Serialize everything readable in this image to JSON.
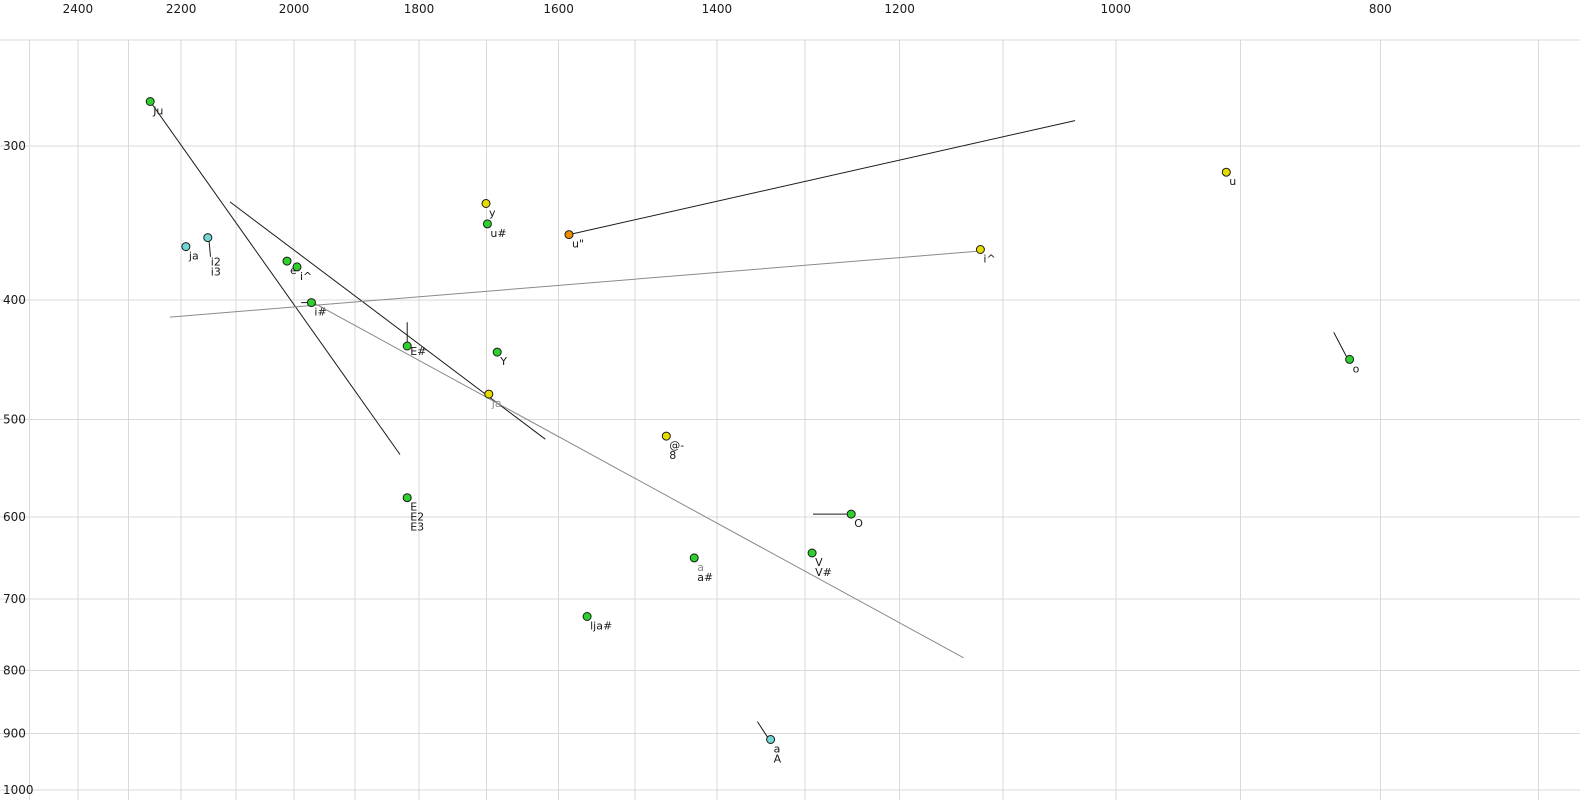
{
  "chart_data": {
    "type": "scatter",
    "title": "",
    "x_axis": {
      "side": "top",
      "scale": "log",
      "direction": "descending",
      "unit": "Hz",
      "tick_values": [
        2400,
        2200,
        2000,
        1800,
        1600,
        1400,
        1200,
        1000,
        800
      ],
      "tick_labels": [
        "2400",
        "2200",
        "2000",
        "1800",
        "1600",
        "1400",
        "1200",
        "1000",
        "800"
      ],
      "range": [
        2563,
        676
      ],
      "grid": {
        "min": 700,
        "max": 2500,
        "step": 100
      }
    },
    "y_axis": {
      "side": "left",
      "scale": "log",
      "direction": "descending-down",
      "unit": "Hz",
      "tick_values": [
        300,
        400,
        500,
        600,
        700,
        800,
        900,
        1000
      ],
      "tick_labels": [
        "300",
        "400",
        "500",
        "600",
        "700",
        "800",
        "900",
        "1000"
      ],
      "range": [
        246,
        1019
      ],
      "grid": {
        "min": 300,
        "max": 1000,
        "step": 100
      }
    },
    "points": [
      {
        "id": "Ju",
        "f2": 2258,
        "f1": 276,
        "color": "green",
        "labels": [
          {
            "text": "Ju",
            "color": "black"
          }
        ]
      },
      {
        "id": "u",
        "f2": 911,
        "f1": 315,
        "color": "yellow",
        "labels": [
          {
            "text": "u",
            "color": "black"
          }
        ]
      },
      {
        "id": "y",
        "f2": 1701,
        "f1": 334,
        "color": "yellow",
        "labels": [
          {
            "text": "y",
            "color": "black"
          }
        ]
      },
      {
        "id": "u#",
        "f2": 1699,
        "f1": 347,
        "color": "green",
        "labels": [
          {
            "text": "u#",
            "color": "black"
          }
        ]
      },
      {
        "id": "u-dq",
        "f2": 1586,
        "f1": 354,
        "color": "orange",
        "labels": [
          {
            "text": "u\"",
            "color": "black"
          }
        ]
      },
      {
        "id": "ja-front",
        "f2": 2191,
        "f1": 362,
        "color": "cyan",
        "labels": [
          {
            "text": "ja",
            "color": "black"
          }
        ]
      },
      {
        "id": "i2",
        "f2": 2151,
        "f1": 356,
        "color": "cyan",
        "label_dy": 28,
        "labels": [
          {
            "text": "i2",
            "color": "black"
          },
          {
            "text": "i3",
            "color": "black"
          }
        ]
      },
      {
        "id": "e",
        "f2": 2012,
        "f1": 372,
        "color": "green",
        "labels": [
          {
            "text": "e",
            "color": "black"
          }
        ]
      },
      {
        "id": "i^",
        "f2": 1995,
        "f1": 376,
        "color": "green",
        "labels": [
          {
            "text": "i^",
            "color": "black"
          }
        ]
      },
      {
        "id": "i#",
        "f2": 1971,
        "f1": 402,
        "color": "green",
        "labels": [
          {
            "text": "i#",
            "color": "black"
          }
        ]
      },
      {
        "id": "E#",
        "f2": 1818,
        "f1": 436,
        "color": "green",
        "label_dy": 9,
        "labels": [
          {
            "text": "E#",
            "color": "black"
          }
        ]
      },
      {
        "id": "Y",
        "f2": 1685,
        "f1": 441,
        "color": "green",
        "labels": [
          {
            "text": "Y",
            "color": "black"
          }
        ]
      },
      {
        "id": "ja-mid",
        "f2": 1697,
        "f1": 477,
        "color": "yellow",
        "labels": [
          {
            "text": "ja",
            "color": "gray"
          }
        ]
      },
      {
        "id": "@-",
        "f2": 1461,
        "f1": 516,
        "color": "yellow",
        "labels": [
          {
            "text": "@-",
            "color": "black"
          },
          {
            "text": "8",
            "color": "black"
          }
        ]
      },
      {
        "id": "E",
        "f2": 1818,
        "f1": 579,
        "color": "green",
        "labels": [
          {
            "text": "E",
            "color": "black"
          },
          {
            "text": "E2",
            "color": "black"
          },
          {
            "text": "E3",
            "color": "black"
          }
        ]
      },
      {
        "id": "O",
        "f2": 1250,
        "f1": 597,
        "color": "green",
        "labels": [
          {
            "text": "O",
            "color": "black"
          }
        ]
      },
      {
        "id": "a#",
        "f2": 1427,
        "f1": 648,
        "color": "green",
        "labels": [
          {
            "text": "a",
            "color": "gray"
          },
          {
            "text": "a#",
            "color": "black"
          }
        ]
      },
      {
        "id": "V",
        "f2": 1292,
        "f1": 642,
        "color": "green",
        "labels": [
          {
            "text": "V",
            "color": "black"
          },
          {
            "text": "V#",
            "color": "black"
          }
        ]
      },
      {
        "id": "lja#",
        "f2": 1562,
        "f1": 723,
        "color": "green",
        "labels": [
          {
            "text": "lja#",
            "color": "black"
          }
        ]
      },
      {
        "id": "aA",
        "f2": 1338,
        "f1": 910,
        "color": "cyan",
        "labels": [
          {
            "text": "a",
            "color": "black"
          },
          {
            "text": "A",
            "color": "black"
          }
        ]
      },
      {
        "id": "o",
        "f2": 821,
        "f1": 447,
        "color": "green",
        "labels": [
          {
            "text": "o",
            "color": "black"
          }
        ]
      },
      {
        "id": "i^-central",
        "f2": 1121,
        "f1": 364,
        "color": "yellow",
        "labels": [
          {
            "text": "i^",
            "color": "black"
          }
        ]
      }
    ],
    "segments": [
      {
        "from": [
          2258,
          276
        ],
        "to": [
          1829,
          534
        ],
        "color": "black"
      },
      {
        "from": [
          2111,
          333
        ],
        "to": [
          1618,
          519
        ],
        "color": "black"
      },
      {
        "from": [
          1976,
          400
        ],
        "to": [
          1137,
          781
        ],
        "color": "gray"
      },
      {
        "from": [
          2221,
          413
        ],
        "to": [
          1121,
          365
        ],
        "color": "gray"
      },
      {
        "from": [
          1586,
          354
        ],
        "to": [
          1035,
          286
        ],
        "color": "black"
      },
      {
        "from": [
          1818,
          417
        ],
        "to": [
          1818,
          434
        ],
        "color": "black"
      },
      {
        "from": [
          2149,
          357
        ],
        "to": [
          2146,
          369
        ],
        "color": "black"
      },
      {
        "from": [
          1988,
          402
        ],
        "to": [
          1973,
          402
        ],
        "color": "black"
      },
      {
        "from": [
          1291,
          597
        ],
        "to": [
          1254,
          597
        ],
        "color": "black"
      },
      {
        "from": [
          832,
          425
        ],
        "to": [
          823,
          445
        ],
        "color": "black"
      },
      {
        "from": [
          1353,
          880
        ],
        "to": [
          1341,
          907
        ],
        "color": "black"
      }
    ],
    "palette": {
      "green": "#2ed02e",
      "yellow": "#e6dc00",
      "cyan": "#72d5d5",
      "orange": "#f08c00",
      "black": "#1a1a1a",
      "gray": "#8a8a8a",
      "grid": "#d9d9d9",
      "background": "#ffffff"
    }
  }
}
